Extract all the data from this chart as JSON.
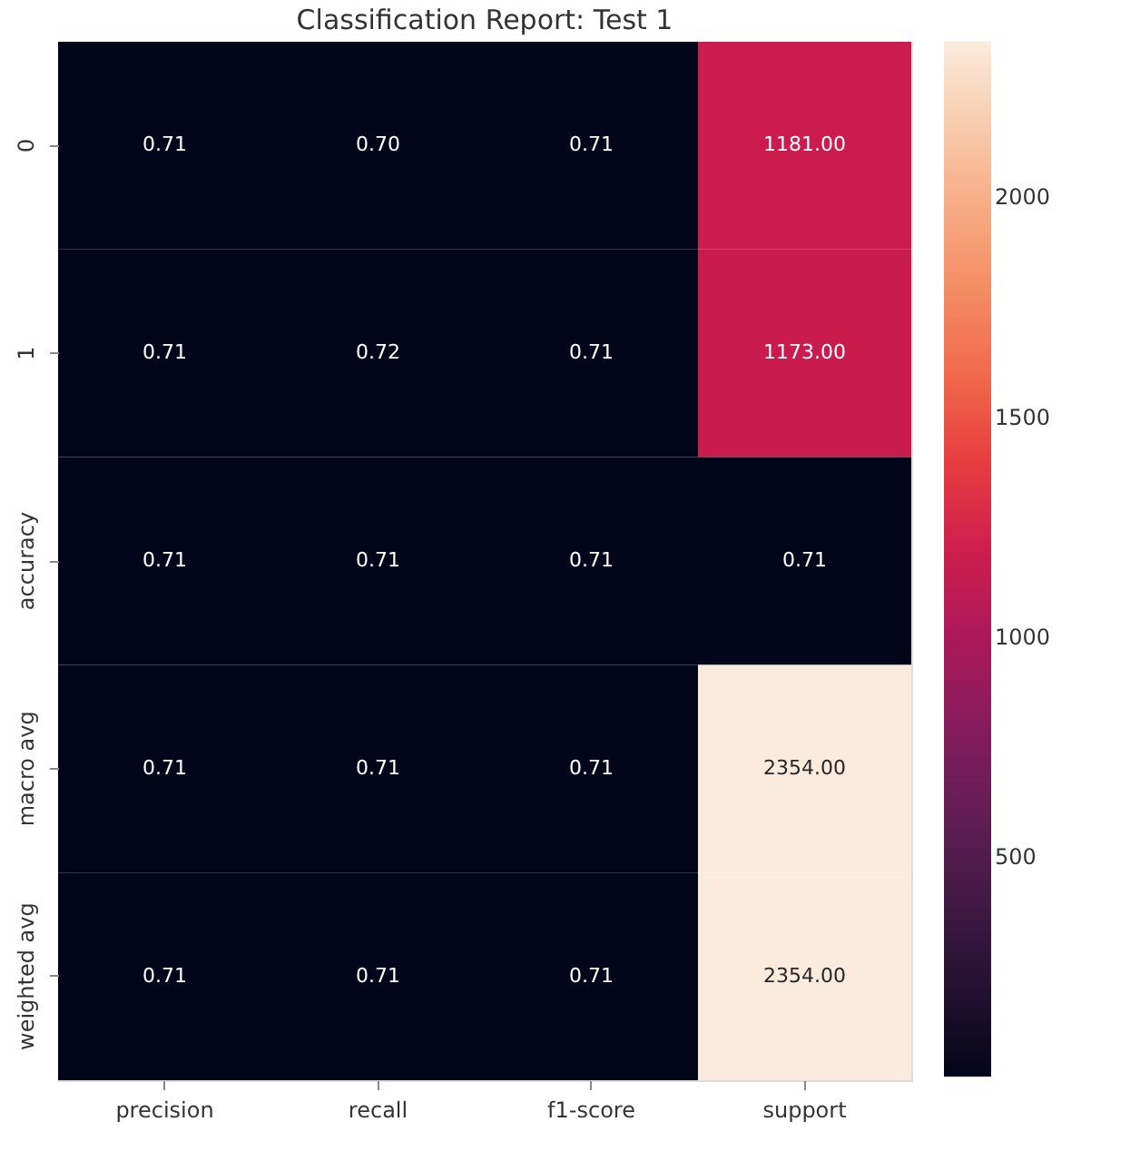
{
  "chart_data": {
    "type": "heatmap",
    "title": "Classification Report: Test 1",
    "categories": [
      "precision",
      "recall",
      "f1-score",
      "support"
    ],
    "y_categories": [
      "0",
      "1",
      "accuracy",
      "macro avg",
      "weighted avg"
    ],
    "cells": [
      [
        0.71,
        0.7,
        0.71,
        1181
      ],
      [
        0.71,
        0.72,
        0.71,
        1173
      ],
      [
        0.71,
        0.71,
        0.71,
        0.71
      ],
      [
        0.71,
        0.71,
        0.71,
        2354
      ],
      [
        0.71,
        0.71,
        0.71,
        2354
      ]
    ],
    "cell_labels": [
      [
        "0.71",
        "0.70",
        "0.71",
        "1181.00"
      ],
      [
        "0.71",
        "0.72",
        "0.71",
        "1173.00"
      ],
      [
        "0.71",
        "0.71",
        "0.71",
        "0.71"
      ],
      [
        "0.71",
        "0.71",
        "0.71",
        "2354.00"
      ],
      [
        "0.71",
        "0.71",
        "0.71",
        "2354.00"
      ]
    ],
    "clim": [
      0.7,
      2354
    ],
    "cticks": [
      500,
      1000,
      1500,
      2000
    ]
  }
}
